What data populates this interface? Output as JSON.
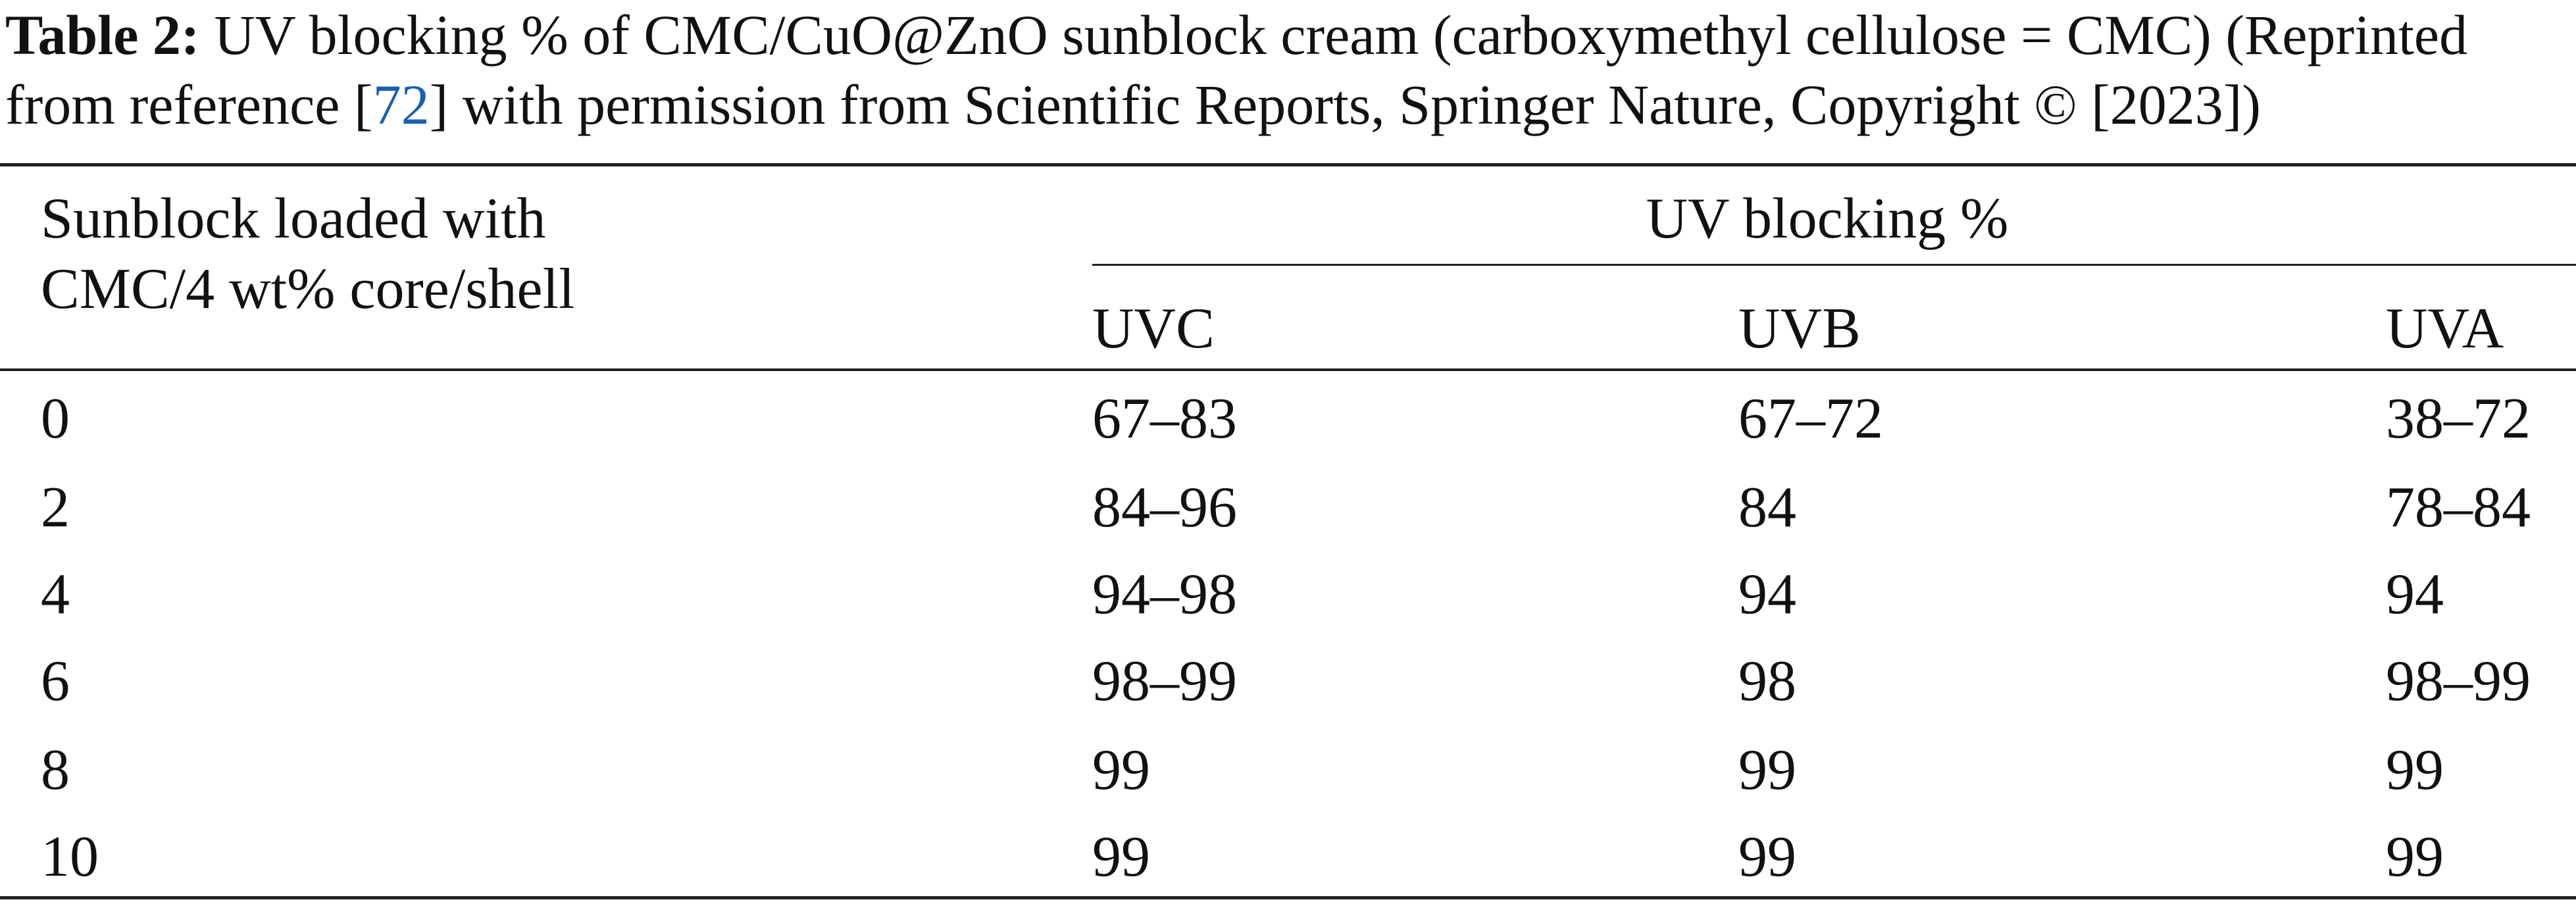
{
  "caption": {
    "label": "Table 2:",
    "text_before": "UV blocking % of CMC/CuO@ZnO sunblock cream (carboxymethyl cellulose = CMC) (Reprinted from reference [",
    "ref": "72",
    "text_after": "] with permission from Scientific Reports, Springer Nature, Copyright © [2023])"
  },
  "table": {
    "row_header": [
      "Sunblock loaded with",
      "CMC/4 wt% core/shell"
    ],
    "group_header": "UV blocking %",
    "columns": [
      "UVC",
      "UVB",
      "UVA"
    ],
    "rows": [
      [
        "0",
        "67–83",
        "67–72",
        "38–72"
      ],
      [
        "2",
        "84–96",
        "84",
        "78–84"
      ],
      [
        "4",
        "94–98",
        "94",
        "94"
      ],
      [
        "6",
        "98–99",
        "98",
        "98–99"
      ],
      [
        "8",
        "99",
        "99",
        "99"
      ],
      [
        "10",
        "99",
        "99",
        "99"
      ]
    ]
  }
}
